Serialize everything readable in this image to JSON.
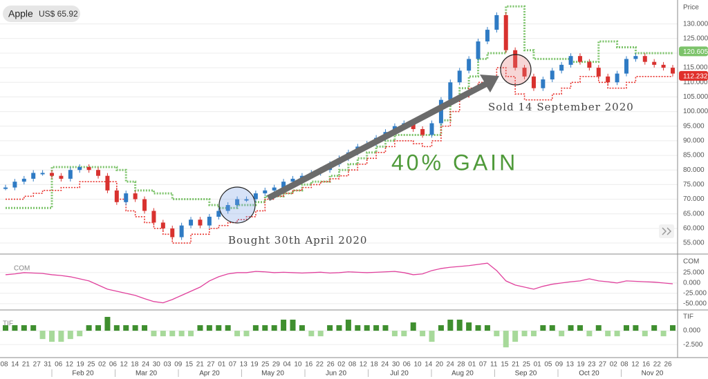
{
  "header": {
    "title": "Apple",
    "price": "US$ 65.92"
  },
  "chart_data": [
    {
      "type": "candlestick",
      "y_label": "Price",
      "ylim": [
        51.7,
        137
      ],
      "yticks": [
        {
          "value": 55,
          "label": "55.000"
        },
        {
          "value": 60,
          "label": "60.000"
        },
        {
          "value": 65,
          "label": "65.000"
        },
        {
          "value": 70,
          "label": "70.000"
        },
        {
          "value": 75,
          "label": "75.000"
        },
        {
          "value": 80,
          "label": "80.000"
        },
        {
          "value": 85,
          "label": "85.000"
        },
        {
          "value": 90,
          "label": "90.000"
        },
        {
          "value": 95,
          "label": "95.000"
        },
        {
          "value": 100,
          "label": "100.000"
        },
        {
          "value": 105,
          "label": "105.000"
        },
        {
          "value": 110,
          "label": "110.000"
        },
        {
          "value": 115,
          "label": "115.000"
        },
        {
          "value": 120,
          "label": "120.000"
        },
        {
          "value": 125,
          "label": "125.000"
        },
        {
          "value": 130,
          "label": "130.000"
        }
      ],
      "closes": [
        74,
        76,
        77,
        79,
        79,
        78,
        77,
        80,
        81,
        80,
        78,
        73,
        69,
        72,
        70,
        66,
        62,
        60,
        57,
        61,
        63,
        61,
        64,
        66,
        68,
        70,
        70,
        72,
        73,
        74,
        76,
        77,
        78,
        79,
        80,
        82,
        84,
        86,
        88,
        89,
        91,
        93,
        95,
        96,
        94,
        92,
        96,
        104,
        110,
        114,
        118,
        124,
        128,
        133,
        121,
        115,
        112,
        108,
        111,
        114,
        116,
        119,
        117,
        115,
        112,
        110,
        113,
        118,
        119,
        117,
        116,
        115,
        113
      ],
      "upper_stop": [
        67,
        67,
        67,
        67,
        67,
        81,
        81,
        81,
        81,
        81,
        81,
        81,
        80,
        76,
        73,
        73,
        72,
        72,
        70,
        70,
        70,
        70,
        68,
        67,
        67,
        68,
        68,
        69,
        71,
        71,
        72,
        73,
        75,
        76,
        76,
        78,
        80,
        82,
        84,
        86,
        88,
        90,
        92,
        92,
        92,
        92,
        92,
        97,
        104,
        108,
        112,
        118,
        120,
        120,
        136,
        136,
        121,
        118,
        118,
        118,
        118,
        117,
        117,
        117,
        124,
        124,
        122,
        122,
        120,
        120,
        120,
        120,
        120
      ],
      "lower_stop": [
        70,
        70,
        71,
        72,
        73,
        73,
        74,
        74,
        76,
        76,
        76,
        76,
        70,
        66,
        64,
        62,
        60,
        58,
        55,
        55,
        58,
        58,
        60,
        61,
        62,
        63,
        64,
        66,
        70,
        71,
        72,
        73,
        74,
        75,
        76,
        77,
        78,
        80,
        82,
        84,
        86,
        88,
        90,
        90,
        89,
        88,
        90,
        95,
        100,
        105,
        108,
        110,
        112,
        115,
        112,
        106,
        104,
        104,
        104,
        106,
        108,
        110,
        112,
        112,
        110,
        108,
        108,
        110,
        112,
        112,
        112,
        112,
        112
      ],
      "up_color": "#2f7bc4",
      "down_color": "#d8322f",
      "upper_color": "#7cc36a",
      "lower_color": "#e8302b",
      "tags": [
        {
          "value": 120.605,
          "color": "#7cc36a"
        },
        {
          "value": 112.232,
          "color": "#e0302b"
        }
      ],
      "annotations": [
        "Bought 30th April 2020",
        "Sold 14 September 2020",
        "40% GAIN"
      ]
    },
    {
      "type": "line",
      "label": "COM",
      "color": "#e0409c",
      "ylim": [
        -62,
        65
      ],
      "yticks": [
        {
          "value": 25,
          "label": "25.000"
        },
        {
          "value": 0,
          "label": "0.000"
        },
        {
          "value": -25,
          "label": "-25.000"
        },
        {
          "value": -50,
          "label": "-50.000"
        }
      ],
      "values": [
        20,
        22,
        25,
        24,
        23,
        20,
        18,
        15,
        10,
        5,
        -5,
        -15,
        -20,
        -25,
        -30,
        -38,
        -45,
        -48,
        -40,
        -30,
        -20,
        -10,
        5,
        15,
        22,
        25,
        25,
        28,
        27,
        25,
        26,
        25,
        24,
        25,
        26,
        24,
        25,
        27,
        26,
        25,
        26,
        27,
        28,
        25,
        20,
        22,
        30,
        35,
        38,
        40,
        42,
        45,
        48,
        30,
        5,
        -5,
        -10,
        -15,
        -8,
        -3,
        0,
        3,
        5,
        10,
        5,
        3,
        0,
        5,
        4,
        3,
        2,
        0,
        -2
      ]
    },
    {
      "type": "bar",
      "label": "TIF",
      "up_color": "#3f8f2f",
      "down_color": "#a7d99a",
      "ylim": [
        -4.6,
        3.5
      ],
      "yticks": [
        {
          "value": 0,
          "label": "0.000"
        },
        {
          "value": -2.5,
          "label": "-2.500"
        }
      ],
      "values": [
        1,
        1,
        1,
        1,
        -1.5,
        -2,
        -2,
        -1.5,
        -1,
        1,
        1,
        2.5,
        1,
        1,
        1,
        1,
        -1,
        -1,
        -1,
        -1,
        -1,
        1,
        1,
        1,
        1,
        -1,
        -1,
        1,
        1,
        1,
        2,
        2,
        1,
        -1,
        -1,
        1,
        1,
        2,
        1,
        1,
        1,
        1,
        -1,
        -1,
        1.5,
        -1,
        -2,
        1,
        2,
        2,
        1.5,
        1,
        1,
        -1,
        -3,
        -2,
        -1,
        -1,
        1,
        1,
        -1,
        1,
        1,
        -1,
        1,
        -1,
        -1,
        1,
        1,
        -1,
        1,
        -1,
        1
      ]
    }
  ],
  "x_axis": {
    "days": [
      "08",
      "14",
      "21",
      "27",
      "31",
      "06",
      "12",
      "19",
      "25",
      "02",
      "06",
      "12",
      "18",
      "24",
      "30",
      "03",
      "09",
      "15",
      "21",
      "27",
      "01",
      "07",
      "13",
      "19",
      "25",
      "29",
      "04",
      "10",
      "16",
      "22",
      "26",
      "02",
      "08",
      "12",
      "18",
      "24",
      "30",
      "06",
      "10",
      "14",
      "20",
      "24",
      "28",
      "01",
      "07",
      "11",
      "15",
      "21",
      "25",
      "01",
      "05",
      "09",
      "13",
      "19",
      "23",
      "27",
      "02",
      "08",
      "12",
      "16",
      "22",
      "26"
    ],
    "months": [
      "Feb 20",
      "Mar 20",
      "Apr 20",
      "May 20",
      "Jun 20",
      "Jul 20",
      "Aug 20",
      "Sep 20",
      "Oct 20",
      "Nov 20"
    ]
  }
}
